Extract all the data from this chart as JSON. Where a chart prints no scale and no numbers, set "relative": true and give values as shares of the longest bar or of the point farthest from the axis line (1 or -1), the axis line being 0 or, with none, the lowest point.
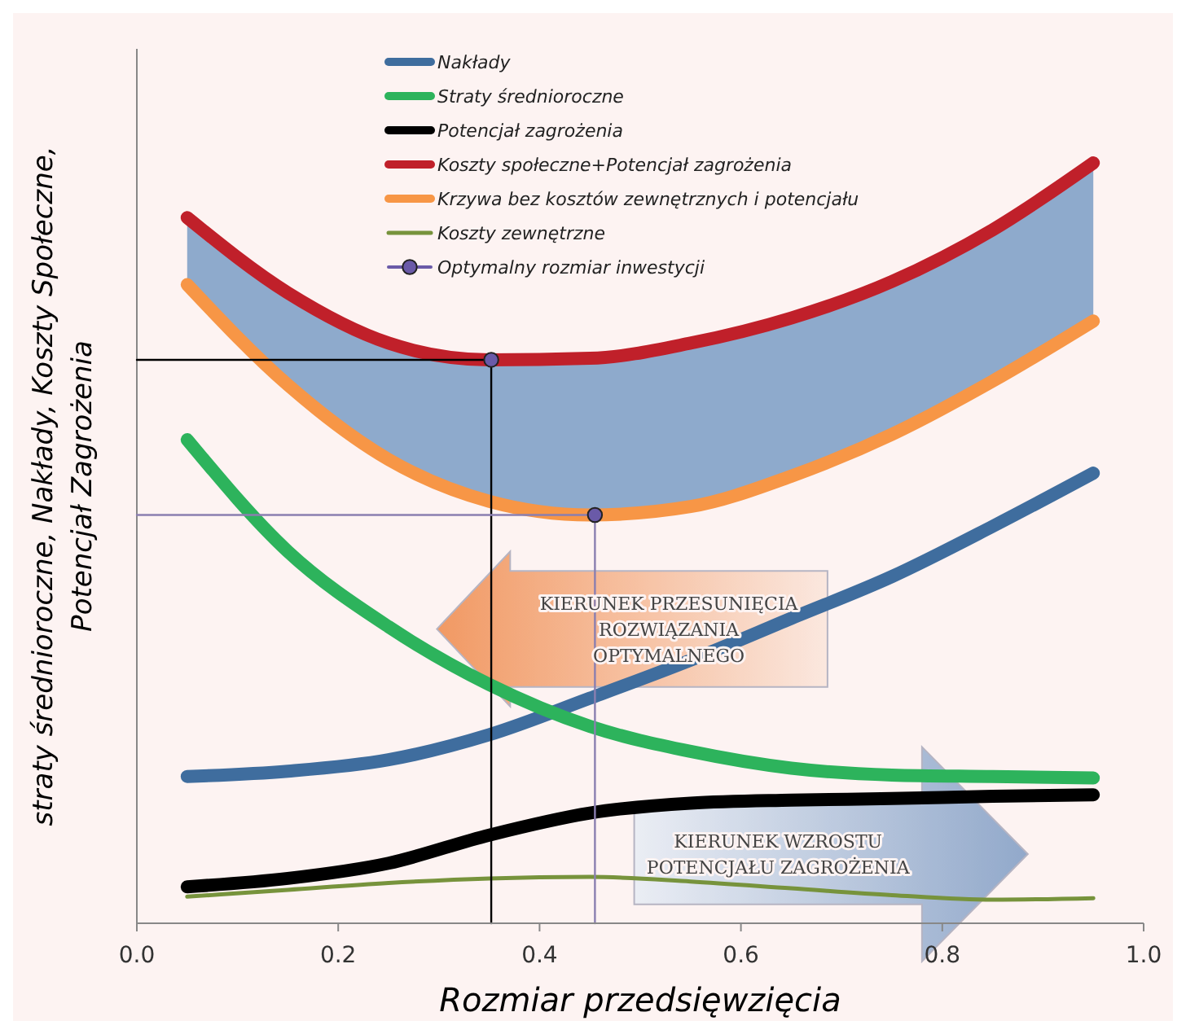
{
  "chart_data": {
    "type": "line",
    "relative": true,
    "xlabel": "Rozmiar przedsięwzięcia",
    "ylabel": "straty średnioroczne, Nakłady, Koszty Społeczne,\nPotencjał Zagrożenia",
    "x": [
      0.05,
      0.15,
      0.25,
      0.35,
      0.45,
      0.55,
      0.65,
      0.75,
      0.85,
      0.95
    ],
    "xlim": [
      0,
      1
    ],
    "xticks": [
      {
        "value": 0,
        "label": "0.0"
      },
      {
        "value": 0.2,
        "label": "0.2"
      },
      {
        "value": 0.4,
        "label": "0.4"
      },
      {
        "value": 0.6,
        "label": "0.6"
      },
      {
        "value": 0.8,
        "label": "0.8"
      },
      {
        "value": 1,
        "label": "1.0"
      }
    ],
    "legend": "top",
    "line_style": "solid",
    "annotations": [
      "KIERUNEK PRZESUNIĘCIA\nROZWIĄZANIA\nOPTYMALNEGO",
      "KIERUNEK WZROSTU\nPOTENCJAŁU ZAGROŻENIA"
    ],
    "series": [
      {
        "name": "Nakłady",
        "color": "#3f6d9e",
        "values": [
          0.193,
          0.2,
          0.215,
          0.248,
          0.296,
          0.346,
          0.401,
          0.456,
          0.522,
          0.592
        ]
      },
      {
        "name": "Straty średnioroczne",
        "color": "#2db35c",
        "values": [
          0.636,
          0.489,
          0.39,
          0.314,
          0.259,
          0.226,
          0.204,
          0.195,
          0.193,
          0.191
        ]
      },
      {
        "name": "Potencjał zagrożenia",
        "color": "#000000",
        "values": [
          0.048,
          0.059,
          0.079,
          0.116,
          0.145,
          0.158,
          0.162,
          0.164,
          0.167,
          0.169
        ]
      },
      {
        "name": "Koszty społeczne+Potencjał zagrożenia",
        "color": "#c0202a",
        "values": [
          0.928,
          0.829,
          0.763,
          0.741,
          0.743,
          0.763,
          0.796,
          0.844,
          0.912,
          1
        ],
        "lower": [
          0.84,
          0.708,
          0.61,
          0.555,
          0.537,
          0.548,
          0.588,
          0.643,
          0.713,
          0.792
        ],
        "upper": [
          0.928,
          0.829,
          0.763,
          0.741,
          0.743,
          0.763,
          0.796,
          0.844,
          0.912,
          1
        ]
      },
      {
        "name": "Krzywa bez kosztów zewnętrznych i potencjału",
        "color": "#f79646",
        "values": [
          0.84,
          0.708,
          0.61,
          0.555,
          0.537,
          0.548,
          0.588,
          0.643,
          0.713,
          0.792
        ]
      },
      {
        "name": "Koszty zewnętrzne",
        "color": "#77933c",
        "values": [
          0.035,
          0.044,
          0.053,
          0.059,
          0.061,
          0.055,
          0.046,
          0.037,
          0.031,
          0.033
        ]
      },
      {
        "color": "#000000",
        "x": [
          0,
          0.352,
          0.352
        ],
        "values": [
          0.741,
          0.741,
          0
        ],
        "marker": "none"
      },
      {
        "color": "#8a7fb0",
        "x": [
          0,
          0.455,
          0.455
        ],
        "values": [
          0.537,
          0.537,
          0
        ],
        "marker": "none"
      },
      {
        "name": "Optymalny rozmiar inwestycji",
        "type": "scatter",
        "color": "#6a5aa8",
        "x": [
          0.352,
          0.455
        ],
        "values": [
          0.741,
          0.537
        ],
        "marker": "circle"
      }
    ]
  }
}
